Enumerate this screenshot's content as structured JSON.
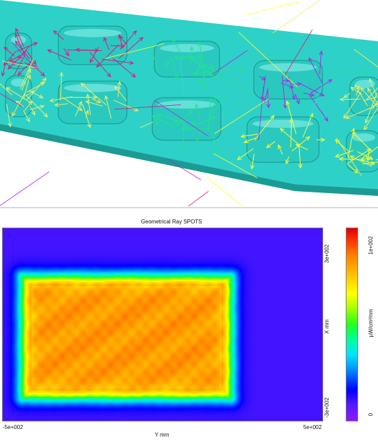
{
  "scene": {
    "beam_color": "#2ed1c7",
    "beam_dark": "#1a9c95",
    "ray_colors": [
      "#e0157f",
      "#21e38f",
      "#a829e3",
      "#f1ee6a",
      "#ffff33",
      "#3ecfe6"
    ]
  },
  "plot": {
    "title": "Geometrical Ray SPOTS",
    "x_axis": {
      "min_label": "-5e+002",
      "max_label": "5e+002",
      "label": "Y mm"
    },
    "y_axis": {
      "max_label": "3e+002",
      "min_label": "-3e+002",
      "label": "X mm"
    },
    "colorbar": {
      "max_label": "1e+002",
      "min_label": "0",
      "label": "µW/cm²/nm"
    }
  },
  "chart_data": {
    "type": "heatmap",
    "title": "Geometrical Ray SPOTS",
    "xlabel": "Y mm",
    "ylabel": "X mm",
    "xlim": [
      -500,
      500
    ],
    "ylim": [
      -300,
      300
    ],
    "zlim": [
      0,
      100
    ],
    "zlabel": "µW/cm²/nm",
    "background_value": 10,
    "plateau_value": 82,
    "spot_extent_x": [
      -440,
      215
    ],
    "spot_extent_y": [
      -230,
      150
    ]
  }
}
